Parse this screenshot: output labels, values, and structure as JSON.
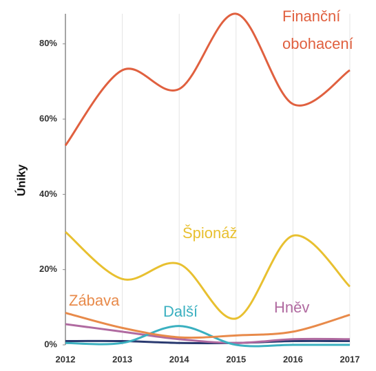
{
  "chart_data": {
    "type": "line",
    "y_label": "Úniky",
    "x": [
      2012,
      2013,
      2014,
      2015,
      2016,
      2017
    ],
    "xlim": [
      2012,
      2017
    ],
    "xticks": [
      2012,
      2013,
      2014,
      2015,
      2016,
      2017
    ],
    "ylim": [
      0,
      88
    ],
    "yticks": [
      {
        "value": 0,
        "label": "0%"
      },
      {
        "value": 20,
        "label": "20%"
      },
      {
        "value": 40,
        "label": "40%"
      },
      {
        "value": 60,
        "label": "60%"
      },
      {
        "value": 80,
        "label": "80%"
      }
    ],
    "grid": true,
    "series": [
      {
        "name": "Finanční obohacení",
        "color": "#e0603f",
        "values": [
          53,
          73,
          68,
          88,
          64,
          73
        ]
      },
      {
        "name": "Špionáž",
        "color": "#e8c030",
        "values": [
          30,
          17.5,
          21.5,
          7,
          29,
          15.5
        ]
      },
      {
        "name": "Zábava",
        "color": "#e88a4a",
        "values": [
          8.5,
          4.5,
          2,
          2.5,
          3.5,
          8
        ]
      },
      {
        "name": "Další",
        "color": "#3ab0c0",
        "values": [
          0.5,
          0.5,
          5,
          0,
          0,
          0
        ]
      },
      {
        "name": "Hněv",
        "color": "#b06aa0",
        "values": [
          5.5,
          3.5,
          1.5,
          0.5,
          1.5,
          1.5
        ]
      },
      {
        "color": "#2a3a70",
        "values": [
          1,
          1,
          0.5,
          0.5,
          1,
          1
        ]
      }
    ]
  }
}
